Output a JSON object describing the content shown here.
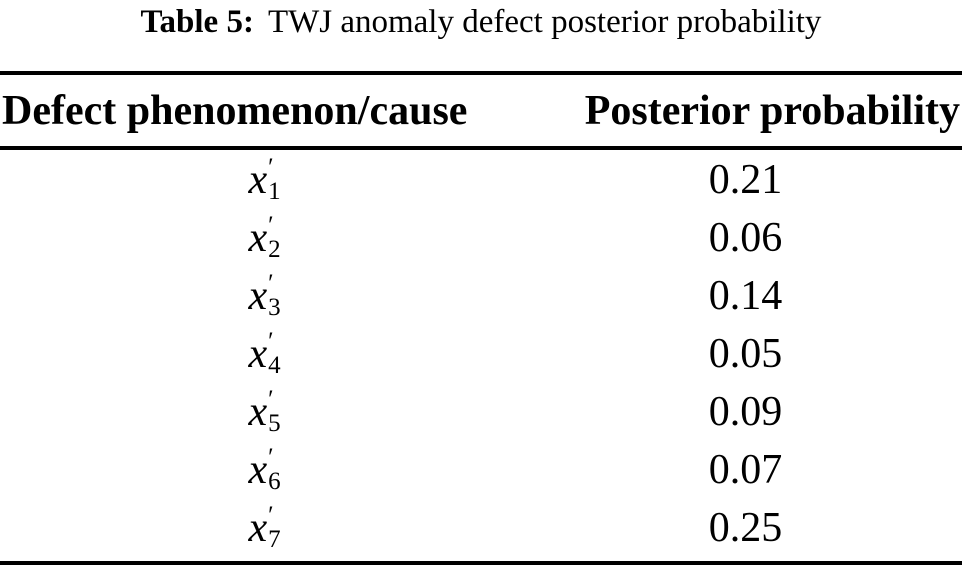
{
  "caption": {
    "label": "Table 5:",
    "title": "TWJ anomaly defect posterior probability"
  },
  "header": {
    "col1": "Defect phenomenon/cause",
    "col2": "Posterior probability"
  },
  "rows": [
    {
      "var": "x",
      "prime": "′",
      "sub": "1",
      "value": "0.21"
    },
    {
      "var": "x",
      "prime": "′",
      "sub": "2",
      "value": "0.06"
    },
    {
      "var": "x",
      "prime": "′",
      "sub": "3",
      "value": "0.14"
    },
    {
      "var": "x",
      "prime": "′",
      "sub": "4",
      "value": "0.05"
    },
    {
      "var": "x",
      "prime": "′",
      "sub": "5",
      "value": "0.09"
    },
    {
      "var": "x",
      "prime": "′",
      "sub": "6",
      "value": "0.07"
    },
    {
      "var": "x",
      "prime": "′",
      "sub": "7",
      "value": "0.25"
    }
  ],
  "chart_data": {
    "type": "table",
    "title": "Table 5: TWJ anomaly defect posterior probability",
    "columns": [
      "Defect phenomenon/cause",
      "Posterior probability"
    ],
    "categories": [
      "x′1",
      "x′2",
      "x′3",
      "x′4",
      "x′5",
      "x′6",
      "x′7"
    ],
    "values": [
      0.21,
      0.06,
      0.14,
      0.05,
      0.09,
      0.07,
      0.25
    ]
  },
  "colors": {
    "text": "#000000",
    "background": "#ffffff",
    "rule": "#000000"
  }
}
